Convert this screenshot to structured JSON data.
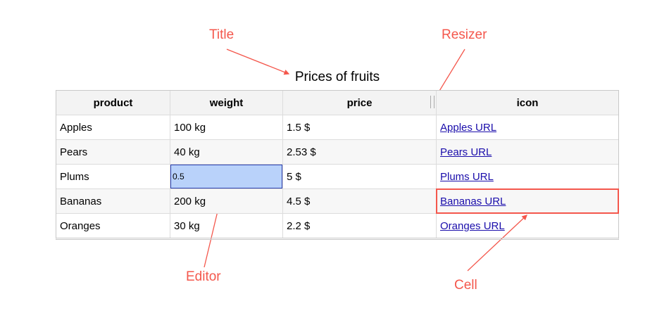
{
  "callouts": {
    "title": "Title",
    "resizer": "Resizer",
    "editor": "Editor",
    "cell": "Cell"
  },
  "table": {
    "caption": "Prices of fruits",
    "columns": [
      "product",
      "weight",
      "price",
      "icon"
    ],
    "rows": [
      {
        "product": "Apples",
        "weight": "100 kg",
        "price": "1.5 $",
        "icon": "Apples URL"
      },
      {
        "product": "Pears",
        "weight": "40 kg",
        "price": "2.53 $",
        "icon": "Pears URL"
      },
      {
        "product": "Plums",
        "weight": "0.5",
        "price": "5 $",
        "icon": "Plums URL"
      },
      {
        "product": "Bananas",
        "weight": "200 kg",
        "price": "4.5 $",
        "icon": "Bananas URL"
      },
      {
        "product": "Oranges",
        "weight": "30 kg",
        "price": "2.2 $",
        "icon": "Oranges URL"
      }
    ]
  },
  "colors": {
    "callout": "#f4574c",
    "editor_bg": "#b9d2fa",
    "link": "#1a0dab"
  }
}
